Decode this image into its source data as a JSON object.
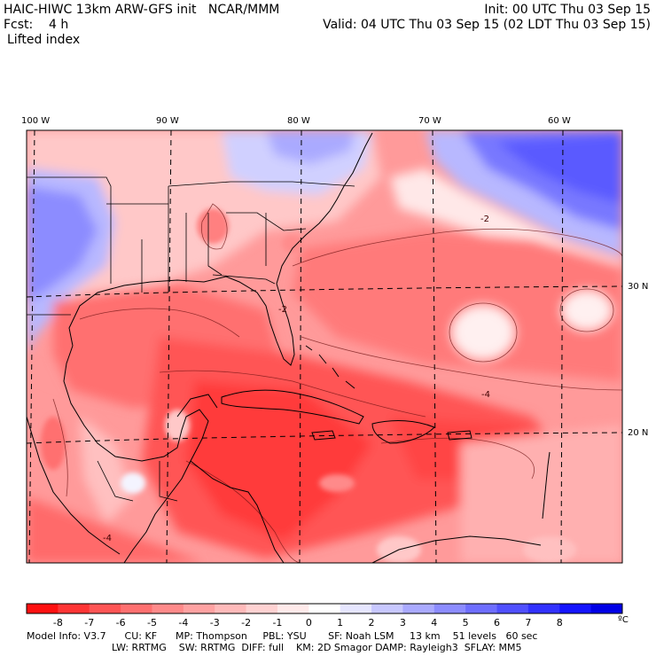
{
  "header": {
    "model_title": "HAIC-HIWC 13km ARW-GFS init   NCAR/MMM",
    "init": "Init: 00 UTC Thu 03 Sep 15",
    "fcst": "Fcst:    4 h",
    "valid": "Valid: 04 UTC Thu 03 Sep 15 (02 LDT Thu 03 Sep 15)",
    "field": "Lifted index"
  },
  "map": {
    "lon_labels": [
      "100 W",
      "90 W",
      "80 W",
      "70 W",
      "60 W"
    ],
    "lat_labels": [
      "30 N",
      "20 N"
    ],
    "contour_labels": [
      "-2",
      "-2",
      "-4",
      "-4"
    ]
  },
  "colorbar": {
    "labels": [
      "-8",
      "-7",
      "-6",
      "-5",
      "-4",
      "-3",
      "-2",
      "-1",
      "0",
      "1",
      "2",
      "3",
      "4",
      "5",
      "6",
      "7",
      "8"
    ],
    "unit": "ºC",
    "colors": [
      "#ff1010",
      "#ff3535",
      "#ff5555",
      "#ff7070",
      "#ff8a8a",
      "#ffa2a2",
      "#ffbaba",
      "#ffd2d2",
      "#ffeaea",
      "#ffffff",
      "#e6e6ff",
      "#c8c8ff",
      "#aaaaff",
      "#8c8cff",
      "#6e6eff",
      "#5050ff",
      "#3232ff",
      "#1414ff",
      "#0000e6"
    ]
  },
  "model_info": {
    "line1": "Model Info: V3.7      CU: KF      MP: Thompson     PBL: YSU       SF: Noah LSM     13 km    51 levels   60 sec",
    "line2": "LW: RRTMG    SW: RRTMG  DIFF: full    KM: 2D Smagor DAMP: Rayleigh3  SFLAY: MM5"
  }
}
